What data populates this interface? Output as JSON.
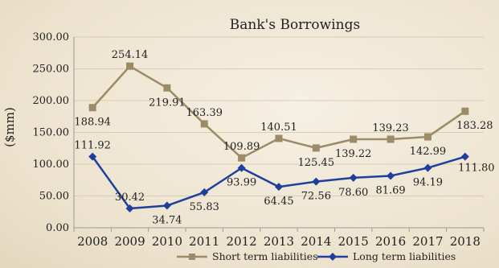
{
  "chart_data": {
    "type": "line",
    "title": "Bank's Borrowings",
    "ylabel": "($mm)",
    "xlabel": "",
    "ylim": [
      0,
      300
    ],
    "yticks": [
      "0.00",
      "50.00",
      "100.00",
      "150.00",
      "200.00",
      "250.00",
      "300.00"
    ],
    "grid": true,
    "legend_position": "bottom",
    "categories": [
      "2008",
      "2009",
      "2010",
      "2011",
      "2012",
      "2013",
      "2014",
      "2015",
      "2016",
      "2017",
      "2018"
    ],
    "series": [
      {
        "name": "Short term liabilities",
        "color": "#9b8b66",
        "marker": "square",
        "values": [
          188.94,
          254.14,
          219.91,
          163.39,
          109.89,
          140.51,
          125.45,
          139.22,
          139.23,
          142.99,
          183.28
        ],
        "labels": [
          "188.94",
          "254.14",
          "219.91",
          "163.39",
          "109.89",
          "140.51",
          "125.45",
          "139.22",
          "139.23",
          "142.99",
          "183.28"
        ]
      },
      {
        "name": "Long term liabilities",
        "color": "#1f3f9e",
        "marker": "diamond",
        "values": [
          111.92,
          30.42,
          34.74,
          55.83,
          93.99,
          64.45,
          72.56,
          78.6,
          81.69,
          94.19,
          111.8
        ],
        "labels": [
          "111.92",
          "30.42",
          "34.74",
          "55.83",
          "93.99",
          "64.45",
          "72.56",
          "78.60",
          "81.69",
          "94.19",
          "111.80"
        ]
      }
    ]
  }
}
